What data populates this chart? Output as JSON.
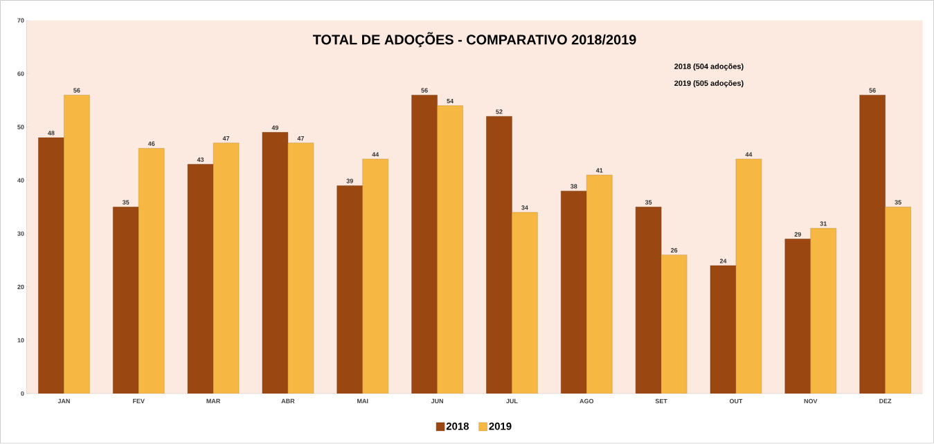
{
  "chart_data": {
    "type": "bar",
    "title": "TOTAL DE ADOÇÕES  - COMPARATIVO 2018/2019",
    "categories": [
      "JAN",
      "FEV",
      "MAR",
      "ABR",
      "MAI",
      "JUN",
      "JUL",
      "AGO",
      "SET",
      "OUT",
      "NOV",
      "DEZ"
    ],
    "series": [
      {
        "name": "2018",
        "color": "#9a4712",
        "values": [
          48,
          35,
          43,
          49,
          39,
          56,
          52,
          38,
          35,
          24,
          29,
          56
        ]
      },
      {
        "name": "2019",
        "color": "#f7b843",
        "values": [
          56,
          46,
          47,
          47,
          44,
          54,
          34,
          41,
          26,
          44,
          31,
          35
        ]
      }
    ],
    "annotations": [
      "2018 (504 adoções)",
      "2019 (505 adoções)"
    ],
    "ylim": [
      0,
      70
    ],
    "yticks": [
      0,
      10,
      20,
      30,
      40,
      50,
      60,
      70
    ],
    "data_labels": true,
    "legend": "bottom",
    "grid": false
  }
}
